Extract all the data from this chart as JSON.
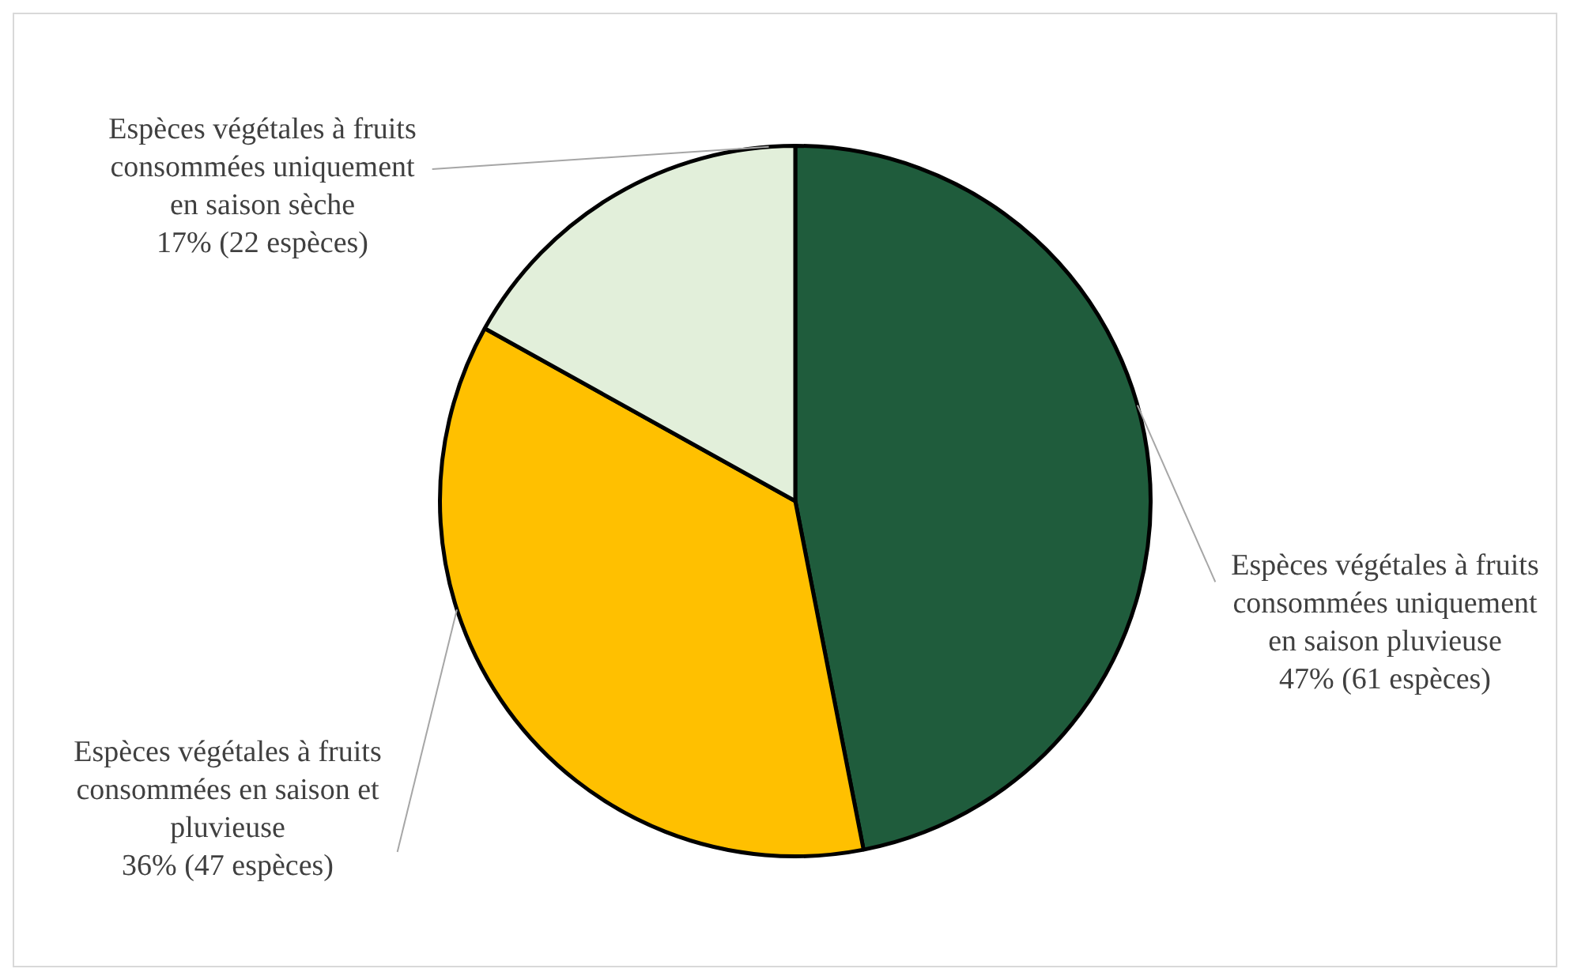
{
  "chart_data": {
    "type": "pie",
    "categories": [
      "Espèces végétales à fruits consommées uniquement en saison pluvieuse",
      "Espèces végétales à fruits consommées en saison et pluvieuse",
      "Espèces végétales à fruits consommées uniquement en saison sèche"
    ],
    "values": [
      61,
      47,
      22
    ],
    "value_labels": [
      "47% (61 espèces)",
      "36% (47 espèces)",
      "17% (22 espèces)"
    ],
    "colors": [
      "#1f5c3c",
      "#ffc000",
      "#e2efda"
    ],
    "legend": false
  }
}
